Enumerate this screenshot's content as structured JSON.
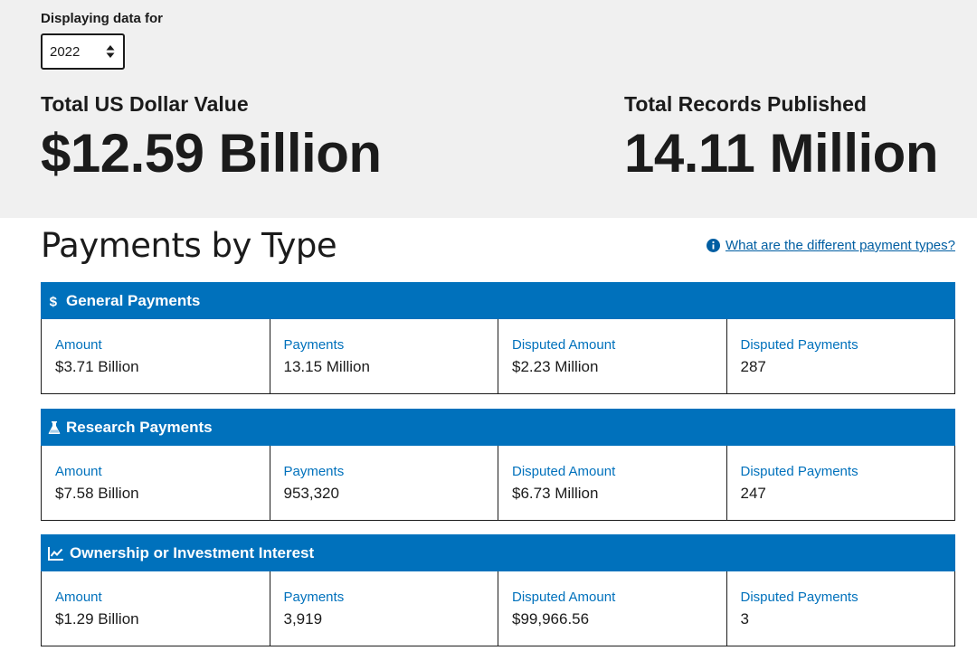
{
  "filter": {
    "label": "Displaying data for",
    "selected_year": "2022"
  },
  "totals": {
    "dollar_label": "Total US Dollar Value",
    "dollar_value": "$12.59 Billion",
    "records_label": "Total Records Published",
    "records_value": "14.11 Million"
  },
  "section": {
    "title": "Payments by Type",
    "help_link": "What are the different payment types?"
  },
  "payment_types": [
    {
      "name": "General Payments",
      "icon": "dollar-icon",
      "amount_label": "Amount",
      "amount": "$3.71 Billion",
      "payments_label": "Payments",
      "payments": "13.15 Million",
      "disputed_amount_label": "Disputed Amount",
      "disputed_amount": "$2.23 Million",
      "disputed_payments_label": "Disputed Payments",
      "disputed_payments": "287"
    },
    {
      "name": "Research Payments",
      "icon": "flask-icon",
      "amount_label": "Amount",
      "amount": "$7.58 Billion",
      "payments_label": "Payments",
      "payments": "953,320",
      "disputed_amount_label": "Disputed Amount",
      "disputed_amount": "$6.73 Million",
      "disputed_payments_label": "Disputed Payments",
      "disputed_payments": "247"
    },
    {
      "name": "Ownership or Investment Interest",
      "icon": "line-chart-icon",
      "amount_label": "Amount",
      "amount": "$1.29 Billion",
      "payments_label": "Payments",
      "payments": "3,919",
      "disputed_amount_label": "Disputed Amount",
      "disputed_amount": "$99,966.56",
      "disputed_payments_label": "Disputed Payments",
      "disputed_payments": "3"
    }
  ],
  "colors": {
    "header_blue": "#0071bc",
    "link_blue": "#005ea2",
    "hero_bg": "#f0f0f0",
    "text": "#1b1b1b"
  }
}
